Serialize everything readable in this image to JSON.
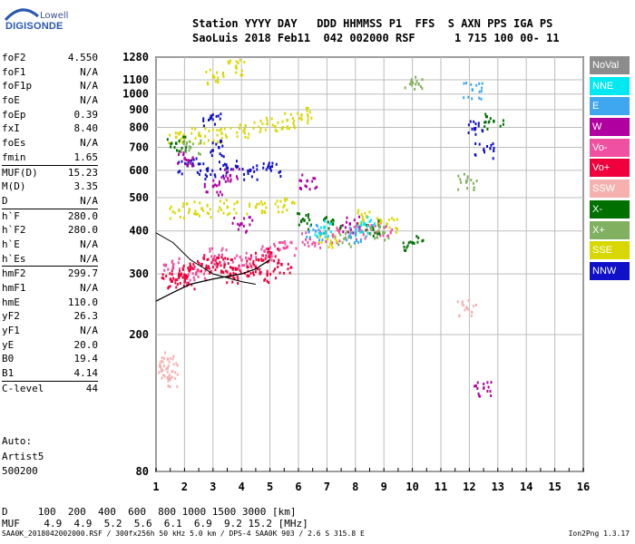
{
  "logo": {
    "line1": "Lowell",
    "line2": "DIGISONDE"
  },
  "header": {
    "line1": "Station YYYY DAY   DDD HHMMSS P1  FFS  S AXN PPS IGA PS",
    "line2": "SaoLuis 2018 Feb11  042 002000 RSF      1 715 100 00- 11"
  },
  "params": [
    {
      "label": "foF2",
      "value": "4.550"
    },
    {
      "label": "foF1",
      "value": "N/A"
    },
    {
      "label": "foF1p",
      "value": "N/A"
    },
    {
      "label": "foE",
      "value": "N/A"
    },
    {
      "label": "foEp",
      "value": "0.39"
    },
    {
      "label": "fxI",
      "value": "8.40"
    },
    {
      "label": "foEs",
      "value": "N/A"
    },
    {
      "label": "fmin",
      "value": "1.65"
    },
    {
      "label": "MUF(D)",
      "value": "15.23",
      "sep": true
    },
    {
      "label": "M(D)",
      "value": "3.35"
    },
    {
      "label": "D",
      "value": "N/A"
    },
    {
      "label": "h`F",
      "value": "280.0",
      "sep": true
    },
    {
      "label": "h`F2",
      "value": "280.0"
    },
    {
      "label": "h`E",
      "value": "N/A"
    },
    {
      "label": "h`Es",
      "value": "N/A"
    },
    {
      "label": "hmF2",
      "value": "299.7",
      "sep": true
    },
    {
      "label": "hmF1",
      "value": "N/A"
    },
    {
      "label": "hmE",
      "value": "110.0"
    },
    {
      "label": "yF2",
      "value": "26.3"
    },
    {
      "label": "yF1",
      "value": "N/A"
    },
    {
      "label": "yE",
      "value": "20.0"
    },
    {
      "label": "B0",
      "value": "19.4"
    },
    {
      "label": "B1",
      "value": "4.14"
    },
    {
      "label": "C-level",
      "value": "44",
      "sep": true
    }
  ],
  "auto": [
    "Auto:",
    "Artist5",
    "500200"
  ],
  "legend": [
    {
      "label": "NoVal",
      "color": "#8c8c8c",
      "text": "#ffffff"
    },
    {
      "label": "NNE",
      "color": "#00e8f0",
      "text": "#ffffff"
    },
    {
      "label": "E",
      "color": "#3fa6f0",
      "text": "#ffffff"
    },
    {
      "label": "W",
      "color": "#b000a0",
      "text": "#ffffff"
    },
    {
      "label": "Vo-",
      "color": "#f050a0",
      "text": "#ffffff"
    },
    {
      "label": "Vo+",
      "color": "#f0003c",
      "text": "#ffffff"
    },
    {
      "label": "SSW",
      "color": "#f6b0b0",
      "text": "#ffffff"
    },
    {
      "label": "X-",
      "color": "#007000",
      "text": "#ffffff"
    },
    {
      "label": "X+",
      "color": "#80b060",
      "text": "#ffffff"
    },
    {
      "label": "SSE",
      "color": "#d8d800",
      "text": "#ffffff"
    },
    {
      "label": "NNW",
      "color": "#1010c8",
      "text": "#ffffff"
    }
  ],
  "muf_table": {
    "d_row": "D     100  200  400  600  800 1000 1500 3000 [km]",
    "muf_row": "MUF    4.9  4.9  5.2  5.6  6.1  6.9  9.2 15.2 [MHz]"
  },
  "footer": {
    "left": "SAA0K_2018042002000.RSF / 300fx256h 50 kHz 5.0 km / DPS-4 SAA0K 903 / 2.6 S 315.8 E",
    "right": "Ion2Png 1.3.17"
  },
  "chart_data": {
    "type": "scatter",
    "title": "",
    "xlabel": "",
    "ylabel": "",
    "xlim": [
      1,
      16
    ],
    "ylim": [
      80,
      1280
    ],
    "x_ticks": [
      1,
      2,
      3,
      4,
      5,
      6,
      7,
      8,
      9,
      10,
      11,
      12,
      13,
      14,
      15,
      16
    ],
    "y_ticks": [
      80,
      200,
      300,
      400,
      500,
      600,
      700,
      800,
      900,
      1000,
      1100,
      1280
    ],
    "grid": true,
    "y_scale": "log",
    "series": [
      {
        "name": "Vo+",
        "color": "#f0003c",
        "points": [
          [
            1.8,
            300
          ],
          [
            2.2,
            310
          ],
          [
            2.6,
            320
          ],
          [
            3.0,
            330
          ],
          [
            3.4,
            320
          ],
          [
            3.8,
            310
          ],
          [
            4.2,
            315
          ],
          [
            4.6,
            330
          ],
          [
            5.0,
            340
          ],
          [
            5.4,
            320
          ],
          [
            1.5,
            290
          ],
          [
            2.0,
            285
          ],
          [
            3.6,
            300
          ],
          [
            4.9,
            300
          ]
        ]
      },
      {
        "name": "Vo-",
        "color": "#f050a0",
        "points": [
          [
            1.6,
            320
          ],
          [
            2.4,
            300
          ],
          [
            3.2,
            340
          ],
          [
            4.0,
            330
          ],
          [
            4.8,
            350
          ],
          [
            5.6,
            360
          ],
          [
            6.4,
            380
          ],
          [
            7.2,
            390
          ],
          [
            8.2,
            400
          ],
          [
            9.0,
            410
          ]
        ]
      },
      {
        "name": "SSE",
        "color": "#d8d800",
        "points": [
          [
            1.7,
            750
          ],
          [
            2.5,
            760
          ],
          [
            3.3,
            770
          ],
          [
            4.1,
            790
          ],
          [
            4.9,
            820
          ],
          [
            5.6,
            840
          ],
          [
            1.8,
            460
          ],
          [
            2.6,
            465
          ],
          [
            3.5,
            470
          ],
          [
            4.5,
            470
          ],
          [
            5.5,
            475
          ],
          [
            3.0,
            1130
          ],
          [
            3.8,
            1200
          ],
          [
            6.1,
            870
          ],
          [
            7.0,
            380
          ],
          [
            8.4,
            440
          ],
          [
            9.1,
            420
          ]
        ]
      },
      {
        "name": "NNW",
        "color": "#1010c8",
        "points": [
          [
            2.1,
            620
          ],
          [
            2.8,
            600
          ],
          [
            3.5,
            610
          ],
          [
            4.3,
            600
          ],
          [
            5.0,
            610
          ],
          [
            2.9,
            850
          ],
          [
            3.2,
            700
          ],
          [
            12.2,
            795
          ],
          [
            12.5,
            690
          ]
        ]
      },
      {
        "name": "W",
        "color": "#b000a0",
        "points": [
          [
            2.0,
            650
          ],
          [
            3.0,
            540
          ],
          [
            3.6,
            580
          ],
          [
            4.0,
            420
          ],
          [
            6.3,
            560
          ],
          [
            7.8,
            420
          ],
          [
            12.5,
            140
          ]
        ]
      },
      {
        "name": "X-",
        "color": "#007000",
        "points": [
          [
            1.7,
            720
          ],
          [
            6.2,
            430
          ],
          [
            7.2,
            420
          ],
          [
            8.6,
            410
          ],
          [
            12.85,
            835
          ],
          [
            10.0,
            370
          ]
        ]
      },
      {
        "name": "X+",
        "color": "#80b060",
        "points": [
          [
            2.2,
            700
          ],
          [
            7.6,
            380
          ],
          [
            8.8,
            400
          ],
          [
            10.0,
            1080
          ],
          [
            11.9,
            560
          ]
        ]
      },
      {
        "name": "E",
        "color": "#3fa6f0",
        "points": [
          [
            12.1,
            1030
          ],
          [
            6.6,
            400
          ],
          [
            8.0,
            390
          ]
        ]
      },
      {
        "name": "NNE",
        "color": "#00e8f0",
        "points": [
          [
            6.9,
            410
          ],
          [
            8.3,
            420
          ]
        ]
      },
      {
        "name": "SSW",
        "color": "#f6b0b0",
        "points": [
          [
            1.4,
            170
          ],
          [
            1.4,
            160
          ],
          [
            1.4,
            150
          ],
          [
            11.9,
            240
          ]
        ]
      }
    ],
    "trace_label": "hmF2 profile"
  }
}
